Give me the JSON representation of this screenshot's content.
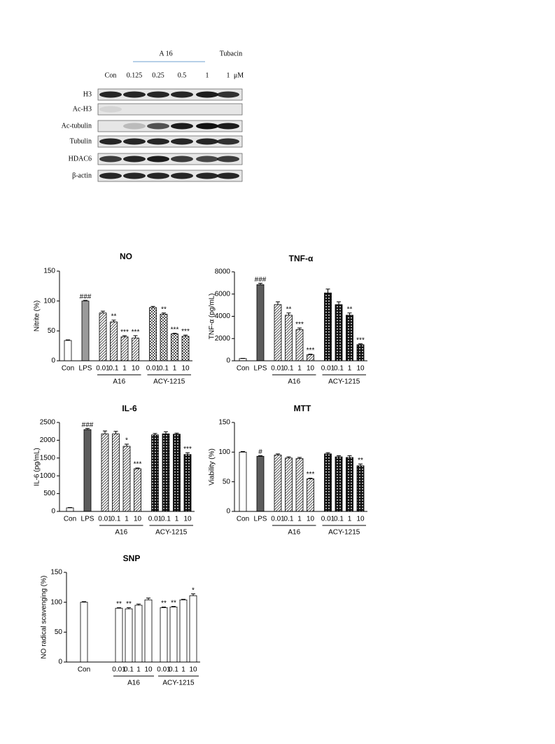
{
  "blot": {
    "header": "A 16",
    "tubacin": "Tubacin",
    "lanes": [
      "Con",
      "0.125",
      "0.25",
      "0.5",
      "1",
      "1"
    ],
    "unit": "μM",
    "rows": [
      "H3",
      "Ac-H3",
      "Ac-tubulin",
      "Tubulin",
      "HDAC6",
      "β-actin"
    ]
  },
  "chart_data": [
    {
      "type": "bar",
      "title": "NO",
      "y_label": "Nitrite (%)",
      "ylim": [
        0,
        150
      ],
      "yticks": [
        0,
        50,
        100,
        150
      ],
      "groups": [
        {
          "name": null,
          "categories": [
            "Con",
            "LPS"
          ],
          "values": [
            34,
            100
          ],
          "errors": [
            1,
            1
          ],
          "annotations": [
            null,
            "###"
          ],
          "patterns": [
            "white",
            "gray"
          ]
        },
        {
          "name": "A16",
          "categories": [
            "0.01",
            "0.1",
            "1",
            "10"
          ],
          "values": [
            80,
            65,
            40,
            38
          ],
          "errors": [
            3,
            3,
            2,
            4
          ],
          "annotations": [
            null,
            "**",
            "***",
            "***"
          ],
          "patterns": [
            "hatch",
            "hatch",
            "hatch",
            "hatch"
          ]
        },
        {
          "name": "ACY-1215",
          "categories": [
            "0.01",
            "0.1",
            "1",
            "10"
          ],
          "values": [
            89,
            78,
            45,
            41
          ],
          "errors": [
            2,
            2,
            1,
            2
          ],
          "annotations": [
            null,
            "**",
            "***",
            "***"
          ],
          "patterns": [
            "dots",
            "dots",
            "dots",
            "dots"
          ]
        }
      ]
    },
    {
      "type": "bar",
      "title": "TNF-α",
      "y_label": "TNF-α (pg/mL)",
      "ylim": [
        0,
        8000
      ],
      "yticks": [
        0,
        2000,
        4000,
        6000,
        8000
      ],
      "groups": [
        {
          "name": null,
          "categories": [
            "Con",
            "LPS"
          ],
          "values": [
            200,
            6850
          ],
          "errors": [
            20,
            120
          ],
          "annotations": [
            null,
            "###"
          ],
          "patterns": [
            "white",
            "dark"
          ]
        },
        {
          "name": "A16",
          "categories": [
            "0.01",
            "0.1",
            "1",
            "10"
          ],
          "values": [
            5050,
            4100,
            2800,
            550
          ],
          "errors": [
            250,
            200,
            150,
            50
          ],
          "annotations": [
            null,
            "**",
            "***",
            "***"
          ],
          "patterns": [
            "hatch",
            "hatch",
            "hatch",
            "hatch"
          ]
        },
        {
          "name": "ACY-1215",
          "categories": [
            "0.01",
            "0.1",
            "1",
            "10"
          ],
          "values": [
            6100,
            5050,
            4100,
            1450
          ],
          "errors": [
            350,
            250,
            200,
            80
          ],
          "annotations": [
            null,
            null,
            "**",
            "***"
          ],
          "patterns": [
            "check",
            "check",
            "check",
            "check"
          ]
        }
      ]
    },
    {
      "type": "bar",
      "title": "IL-6",
      "y_label": "IL-6 (pg/mL)",
      "ylim": [
        0,
        2500
      ],
      "yticks": [
        0,
        500,
        1000,
        1500,
        2000,
        2500
      ],
      "groups": [
        {
          "name": null,
          "categories": [
            "Con",
            "LPS"
          ],
          "values": [
            100,
            2300
          ],
          "errors": [
            10,
            30
          ],
          "annotations": [
            null,
            "###"
          ],
          "patterns": [
            "white",
            "dark"
          ]
        },
        {
          "name": "A16",
          "categories": [
            "0.01",
            "0.1",
            "1",
            "10"
          ],
          "values": [
            2180,
            2180,
            1830,
            1200
          ],
          "errors": [
            80,
            70,
            60,
            20
          ],
          "annotations": [
            null,
            null,
            "*",
            "***"
          ],
          "patterns": [
            "hatch",
            "hatch",
            "hatch",
            "hatch"
          ]
        },
        {
          "name": "ACY-1215",
          "categories": [
            "0.01",
            "0.1",
            "1",
            "10"
          ],
          "values": [
            2150,
            2180,
            2170,
            1600
          ],
          "errors": [
            40,
            60,
            30,
            50
          ],
          "annotations": [
            null,
            null,
            null,
            "***"
          ],
          "patterns": [
            "check",
            "check",
            "check",
            "check"
          ]
        }
      ]
    },
    {
      "type": "bar",
      "title": "MTT",
      "y_label": "Viability (%)",
      "ylim": [
        0,
        150
      ],
      "yticks": [
        0,
        50,
        100,
        150
      ],
      "groups": [
        {
          "name": null,
          "categories": [
            "Con",
            "LPS"
          ],
          "values": [
            100,
            93
          ],
          "errors": [
            1,
            1
          ],
          "annotations": [
            null,
            "#"
          ],
          "patterns": [
            "white",
            "dark"
          ]
        },
        {
          "name": "A16",
          "categories": [
            "0.01",
            "0.1",
            "1",
            "10"
          ],
          "values": [
            95,
            90,
            89,
            55
          ],
          "errors": [
            2,
            2,
            2,
            1
          ],
          "annotations": [
            null,
            null,
            null,
            "***"
          ],
          "patterns": [
            "hatch",
            "hatch",
            "hatch",
            "hatch"
          ]
        },
        {
          "name": "ACY-1215",
          "categories": [
            "0.01",
            "0.1",
            "1",
            "10"
          ],
          "values": [
            97,
            92,
            91,
            77
          ],
          "errors": [
            2,
            2,
            3,
            3
          ],
          "annotations": [
            null,
            null,
            null,
            "**"
          ],
          "patterns": [
            "check",
            "check",
            "check",
            "check"
          ]
        }
      ]
    },
    {
      "type": "bar",
      "title": "SNP",
      "y_label": "NO radical scavenging (%)",
      "ylim": [
        0,
        150
      ],
      "yticks": [
        0,
        50,
        100,
        150
      ],
      "groups": [
        {
          "name": null,
          "categories": [
            "Con"
          ],
          "values": [
            100
          ],
          "errors": [
            1
          ],
          "annotations": [
            null
          ],
          "patterns": [
            "white"
          ]
        },
        {
          "name": "A16",
          "categories": [
            "0.01",
            "0.1",
            "1",
            "10"
          ],
          "values": [
            90,
            89,
            95,
            104
          ],
          "errors": [
            1,
            2,
            2,
            3
          ],
          "annotations": [
            "**",
            "**",
            null,
            null
          ],
          "patterns": [
            "white",
            "white",
            "white",
            "white"
          ]
        },
        {
          "name": "ACY-1215",
          "categories": [
            "0.01",
            "0.1",
            "1",
            "10"
          ],
          "values": [
            91,
            92,
            104,
            111
          ],
          "errors": [
            1,
            1,
            1,
            3
          ],
          "annotations": [
            "**",
            "**",
            null,
            "*"
          ],
          "patterns": [
            "white",
            "white",
            "white",
            "white"
          ]
        }
      ]
    }
  ]
}
